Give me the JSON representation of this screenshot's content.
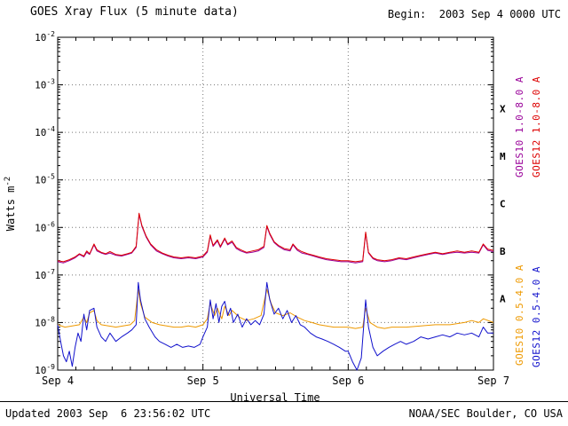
{
  "header": {
    "title": "GOES Xray Flux (5 minute data)",
    "begin_label": "Begin:  2003 Sep 4 0000 UTC"
  },
  "footer": {
    "updated": "Updated 2003 Sep  6 23:56:02 UTC",
    "source": "NOAA/SEC Boulder, CO USA"
  },
  "chart_data": {
    "type": "line",
    "title": "GOES Xray Flux (5 minute data)",
    "xlabel": "Universal Time",
    "ylabel": "Watts m^-2",
    "x_range": [
      0,
      3
    ],
    "x_ticks": [
      {
        "t": 0,
        "label": "Sep 4"
      },
      {
        "t": 1,
        "label": "Sep 5"
      },
      {
        "t": 2,
        "label": "Sep 6"
      },
      {
        "t": 3,
        "label": "Sep 7"
      }
    ],
    "y_log_range": [
      -9,
      -2
    ],
    "y_tick_exponents": [
      -2,
      -3,
      -4,
      -5,
      -6,
      -7,
      -8,
      -9
    ],
    "flare_classes": [
      {
        "label": "X",
        "log": -3.5
      },
      {
        "label": "M",
        "log": -4.5
      },
      {
        "label": "C",
        "log": -5.5
      },
      {
        "label": "B",
        "log": -6.5
      },
      {
        "label": "A",
        "log": -7.5
      }
    ],
    "grid_color": "#777777",
    "legend": [
      {
        "name": "GOES10 1.0-8.0 A",
        "color": "#990099"
      },
      {
        "name": "GOES12 1.0-8.0 A",
        "color": "#dd0000"
      },
      {
        "name": "GOES10 0.5-4.0 A",
        "color": "#ee9900"
      },
      {
        "name": "GOES12 0.5-4.0 A",
        "color": "#1111cc"
      }
    ],
    "series": [
      {
        "name": "GOES10 1.0-8.0 A",
        "color": "#990099",
        "x": [
          0,
          0.04,
          0.08,
          0.12,
          0.15,
          0.18,
          0.2,
          0.22,
          0.25,
          0.27,
          0.3,
          0.33,
          0.36,
          0.4,
          0.44,
          0.48,
          0.51,
          0.54,
          0.56,
          0.58,
          0.61,
          0.64,
          0.68,
          0.72,
          0.76,
          0.8,
          0.85,
          0.9,
          0.95,
          1.0,
          1.03,
          1.05,
          1.07,
          1.1,
          1.12,
          1.15,
          1.17,
          1.2,
          1.23,
          1.26,
          1.3,
          1.34,
          1.38,
          1.42,
          1.44,
          1.46,
          1.49,
          1.52,
          1.56,
          1.6,
          1.62,
          1.65,
          1.68,
          1.72,
          1.76,
          1.8,
          1.85,
          1.9,
          1.95,
          2.0,
          2.05,
          2.1,
          2.12,
          2.14,
          2.17,
          2.2,
          2.25,
          2.3,
          2.35,
          2.4,
          2.45,
          2.5,
          2.55,
          2.6,
          2.65,
          2.7,
          2.75,
          2.8,
          2.85,
          2.9,
          2.93,
          2.96,
          3.0
        ],
        "y": [
          1.9e-07,
          1.8e-07,
          2e-07,
          2.3e-07,
          2.7e-07,
          2.4e-07,
          3e-07,
          2.7e-07,
          4.3e-07,
          3.2e-07,
          2.9e-07,
          2.7e-07,
          2.9e-07,
          2.6e-07,
          2.5e-07,
          2.7e-07,
          2.9e-07,
          3.8e-07,
          1.9e-06,
          1.05e-06,
          6.2e-07,
          4.3e-07,
          3.2e-07,
          2.8e-07,
          2.5e-07,
          2.3e-07,
          2.2e-07,
          2.3e-07,
          2.2e-07,
          2.4e-07,
          3e-07,
          6.6e-07,
          4e-07,
          5.2e-07,
          3.8e-07,
          5.7e-07,
          4.3e-07,
          4.9e-07,
          3.6e-07,
          3.2e-07,
          2.9e-07,
          3e-07,
          3.2e-07,
          3.8e-07,
          1.05e-06,
          7.1e-07,
          4.8e-07,
          4e-07,
          3.4e-07,
          3.2e-07,
          4.3e-07,
          3.3e-07,
          2.9e-07,
          2.7e-07,
          2.5e-07,
          2.3e-07,
          2.1e-07,
          2e-07,
          1.9e-07,
          1.9e-07,
          1.8e-07,
          1.9e-07,
          7.6e-07,
          2.9e-07,
          2.2e-07,
          2e-07,
          1.9e-07,
          2e-07,
          2.2e-07,
          2.1e-07,
          2.3e-07,
          2.5e-07,
          2.7e-07,
          2.9e-07,
          2.7e-07,
          2.9e-07,
          3e-07,
          2.9e-07,
          3e-07,
          2.9e-07,
          4.3e-07,
          3.3e-07,
          3.1e-07
        ]
      },
      {
        "name": "GOES12 1.0-8.0 A",
        "color": "#dd0000",
        "x": [
          0,
          0.04,
          0.08,
          0.12,
          0.15,
          0.18,
          0.2,
          0.22,
          0.25,
          0.27,
          0.3,
          0.33,
          0.36,
          0.4,
          0.44,
          0.48,
          0.51,
          0.54,
          0.56,
          0.58,
          0.61,
          0.64,
          0.68,
          0.72,
          0.76,
          0.8,
          0.85,
          0.9,
          0.95,
          1.0,
          1.03,
          1.05,
          1.07,
          1.1,
          1.12,
          1.15,
          1.17,
          1.2,
          1.23,
          1.26,
          1.3,
          1.34,
          1.38,
          1.42,
          1.44,
          1.46,
          1.49,
          1.52,
          1.56,
          1.6,
          1.62,
          1.65,
          1.68,
          1.72,
          1.76,
          1.8,
          1.85,
          1.9,
          1.95,
          2.0,
          2.05,
          2.1,
          2.12,
          2.14,
          2.17,
          2.2,
          2.25,
          2.3,
          2.35,
          2.4,
          2.45,
          2.5,
          2.55,
          2.6,
          2.65,
          2.7,
          2.75,
          2.8,
          2.85,
          2.9,
          2.93,
          2.96,
          3.0
        ],
        "y": [
          2e-07,
          1.9e-07,
          2.1e-07,
          2.4e-07,
          2.8e-07,
          2.5e-07,
          3.2e-07,
          2.8e-07,
          4.5e-07,
          3.4e-07,
          3e-07,
          2.8e-07,
          3.1e-07,
          2.7e-07,
          2.6e-07,
          2.8e-07,
          3e-07,
          4e-07,
          2e-06,
          1.1e-06,
          6.5e-07,
          4.5e-07,
          3.4e-07,
          2.9e-07,
          2.6e-07,
          2.4e-07,
          2.3e-07,
          2.4e-07,
          2.3e-07,
          2.5e-07,
          3.2e-07,
          7e-07,
          4.2e-07,
          5.5e-07,
          4e-07,
          6e-07,
          4.5e-07,
          5.2e-07,
          3.8e-07,
          3.4e-07,
          3e-07,
          3.2e-07,
          3.4e-07,
          4e-07,
          1.1e-06,
          7.5e-07,
          5e-07,
          4.2e-07,
          3.6e-07,
          3.4e-07,
          4.5e-07,
          3.5e-07,
          3.1e-07,
          2.8e-07,
          2.6e-07,
          2.4e-07,
          2.2e-07,
          2.1e-07,
          2e-07,
          2e-07,
          1.9e-07,
          2e-07,
          8e-07,
          3e-07,
          2.3e-07,
          2.1e-07,
          2e-07,
          2.1e-07,
          2.3e-07,
          2.2e-07,
          2.4e-07,
          2.6e-07,
          2.8e-07,
          3e-07,
          2.8e-07,
          3e-07,
          3.2e-07,
          3e-07,
          3.2e-07,
          3e-07,
          4.5e-07,
          3.5e-07,
          3.3e-07
        ]
      },
      {
        "name": "GOES10 0.5-4.0 A",
        "color": "#ee9900",
        "x": [
          0,
          0.05,
          0.1,
          0.15,
          0.18,
          0.2,
          0.22,
          0.25,
          0.27,
          0.3,
          0.35,
          0.4,
          0.45,
          0.5,
          0.53,
          0.555,
          0.57,
          0.6,
          0.65,
          0.7,
          0.75,
          0.8,
          0.85,
          0.9,
          0.95,
          1.0,
          1.03,
          1.05,
          1.08,
          1.1,
          1.13,
          1.15,
          1.18,
          1.2,
          1.25,
          1.3,
          1.35,
          1.4,
          1.44,
          1.47,
          1.5,
          1.55,
          1.6,
          1.65,
          1.7,
          1.75,
          1.8,
          1.85,
          1.9,
          1.95,
          2.0,
          2.05,
          2.1,
          2.12,
          2.15,
          2.2,
          2.25,
          2.3,
          2.4,
          2.5,
          2.6,
          2.7,
          2.8,
          2.85,
          2.9,
          2.93,
          3.0
        ],
        "y": [
          9e-09,
          8e-09,
          8.5e-09,
          9e-09,
          1.3e-08,
          1e-08,
          1.6e-08,
          1.8e-08,
          1.1e-08,
          9e-09,
          8.5e-09,
          8e-09,
          8.5e-09,
          9e-09,
          1.1e-08,
          5e-08,
          2.5e-08,
          1.3e-08,
          1e-08,
          9e-09,
          8.5e-09,
          8e-09,
          8e-09,
          8.5e-09,
          8e-09,
          9e-09,
          1.2e-08,
          2.5e-08,
          1.4e-08,
          2e-08,
          1.2e-08,
          2.2e-08,
          1.4e-08,
          1.8e-08,
          1.3e-08,
          1.1e-08,
          1.2e-08,
          1.4e-08,
          5e-08,
          2.5e-08,
          1.6e-08,
          1.4e-08,
          1.6e-08,
          1.3e-08,
          1.1e-08,
          1e-08,
          9e-09,
          8.5e-09,
          8e-09,
          8e-09,
          8e-09,
          7.5e-09,
          8e-09,
          2e-08,
          1e-08,
          8e-09,
          7.5e-09,
          8e-09,
          8e-09,
          8.5e-09,
          9e-09,
          9e-09,
          1e-08,
          1.1e-08,
          1e-08,
          1.2e-08,
          1e-08
        ]
      },
      {
        "name": "GOES12 0.5-4.0 A",
        "color": "#1111cc",
        "x": [
          0,
          0.02,
          0.04,
          0.06,
          0.08,
          0.1,
          0.12,
          0.14,
          0.16,
          0.18,
          0.2,
          0.22,
          0.25,
          0.27,
          0.3,
          0.33,
          0.36,
          0.4,
          0.44,
          0.48,
          0.51,
          0.54,
          0.555,
          0.57,
          0.6,
          0.63,
          0.67,
          0.7,
          0.74,
          0.78,
          0.82,
          0.86,
          0.9,
          0.94,
          0.98,
          1.0,
          1.03,
          1.05,
          1.07,
          1.09,
          1.11,
          1.13,
          1.15,
          1.17,
          1.19,
          1.21,
          1.24,
          1.27,
          1.3,
          1.33,
          1.36,
          1.39,
          1.42,
          1.44,
          1.46,
          1.49,
          1.52,
          1.55,
          1.58,
          1.61,
          1.64,
          1.67,
          1.7,
          1.74,
          1.78,
          1.82,
          1.86,
          1.9,
          1.94,
          1.98,
          2.0,
          2.03,
          2.06,
          2.09,
          2.12,
          2.14,
          2.17,
          2.2,
          2.24,
          2.28,
          2.32,
          2.36,
          2.4,
          2.45,
          2.5,
          2.55,
          2.6,
          2.65,
          2.7,
          2.75,
          2.8,
          2.85,
          2.9,
          2.93,
          2.96,
          3.0
        ],
        "y": [
          9e-09,
          4e-09,
          2e-09,
          1.5e-09,
          2.5e-09,
          1.2e-09,
          3e-09,
          6e-09,
          4e-09,
          1.5e-08,
          7e-09,
          1.8e-08,
          2e-08,
          8e-09,
          5e-09,
          4e-09,
          6e-09,
          4e-09,
          5e-09,
          6e-09,
          7e-09,
          9e-09,
          7e-08,
          3e-08,
          1.2e-08,
          8e-09,
          5e-09,
          4e-09,
          3.5e-09,
          3e-09,
          3.5e-09,
          3e-09,
          3.2e-09,
          3e-09,
          3.5e-09,
          5e-09,
          8e-09,
          3e-08,
          1.2e-08,
          2.5e-08,
          1e-08,
          2.2e-08,
          2.8e-08,
          1.4e-08,
          2e-08,
          1e-08,
          1.5e-08,
          8e-09,
          1.2e-08,
          9e-09,
          1.1e-08,
          9e-09,
          1.5e-08,
          7e-08,
          3e-08,
          1.5e-08,
          2e-08,
          1.2e-08,
          1.8e-08,
          1e-08,
          1.4e-08,
          9e-09,
          8e-09,
          6e-09,
          5e-09,
          4.5e-09,
          4e-09,
          3.5e-09,
          3e-09,
          2.5e-09,
          2.5e-09,
          1.5e-09,
          1e-09,
          1.8e-09,
          3e-08,
          8e-09,
          3e-09,
          2e-09,
          2.5e-09,
          3e-09,
          3.5e-09,
          4e-09,
          3.5e-09,
          4e-09,
          5e-09,
          4.5e-09,
          5e-09,
          5.5e-09,
          5e-09,
          6e-09,
          5.5e-09,
          6e-09,
          5e-09,
          8e-09,
          6e-09,
          6e-09
        ]
      }
    ]
  }
}
